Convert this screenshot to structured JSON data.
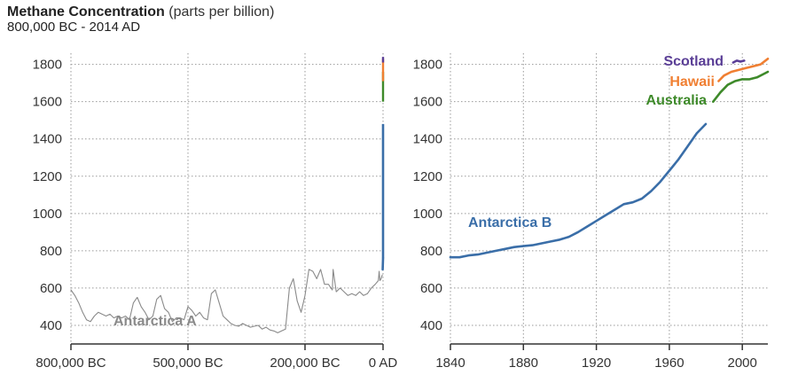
{
  "header": {
    "title": "Methane Concentration",
    "units": "(parts per billion)",
    "subtitle": "800,000 BC - 2014 AD"
  },
  "colors": {
    "antarctica_a": "#8a8a8a",
    "antarctica_b": "#3a6ea8",
    "australia": "#3e8a2a",
    "hawaii": "#f07f32",
    "scotland": "#5a3e96",
    "grid": "#9a9a9a",
    "axis": "#333333"
  },
  "chart_data": [
    {
      "type": "line",
      "title": "",
      "xlabel": "",
      "ylabel": "",
      "xlim": [
        -800000,
        0
      ],
      "ylim": [
        300,
        1860
      ],
      "x_ticks": [
        -800000,
        -500000,
        -200000,
        0
      ],
      "x_tick_labels": [
        "800,000 BC",
        "500,000 BC",
        "200,000 BC",
        "0 AD"
      ],
      "y_ticks": [
        400,
        600,
        800,
        1000,
        1200,
        1400,
        1600,
        1800
      ],
      "y_tick_labels": [
        "400",
        "600",
        "800",
        "1000",
        "1200",
        "1400",
        "1600",
        "1800"
      ],
      "grid": true,
      "legend": "inline labels",
      "series": [
        {
          "name": "Antarctica A",
          "x": [
            -800000,
            -790000,
            -780000,
            -770000,
            -760000,
            -750000,
            -740000,
            -730000,
            -720000,
            -710000,
            -700000,
            -690000,
            -680000,
            -670000,
            -660000,
            -650000,
            -640000,
            -630000,
            -620000,
            -610000,
            -600000,
            -590000,
            -580000,
            -570000,
            -560000,
            -550000,
            -540000,
            -530000,
            -520000,
            -510000,
            -500000,
            -490000,
            -480000,
            -470000,
            -460000,
            -450000,
            -440000,
            -430000,
            -420000,
            -410000,
            -400000,
            -390000,
            -380000,
            -370000,
            -360000,
            -350000,
            -340000,
            -330000,
            -320000,
            -310000,
            -300000,
            -290000,
            -280000,
            -270000,
            -260000,
            -250000,
            -240000,
            -230000,
            -220000,
            -210000,
            -200000,
            -190000,
            -180000,
            -170000,
            -160000,
            -150000,
            -140000,
            -130000,
            -128000,
            -120000,
            -110000,
            -100000,
            -90000,
            -80000,
            -70000,
            -60000,
            -50000,
            -40000,
            -30000,
            -20000,
            -12000,
            -10000,
            -8000,
            -5000,
            -2000
          ],
          "values": [
            590,
            560,
            520,
            470,
            430,
            420,
            450,
            470,
            460,
            450,
            460,
            440,
            450,
            440,
            450,
            430,
            520,
            550,
            500,
            470,
            430,
            450,
            540,
            560,
            490,
            470,
            420,
            440,
            440,
            430,
            500,
            480,
            450,
            470,
            440,
            430,
            570,
            590,
            520,
            450,
            430,
            410,
            400,
            395,
            410,
            400,
            390,
            395,
            400,
            380,
            390,
            375,
            370,
            360,
            370,
            380,
            600,
            650,
            530,
            470,
            560,
            700,
            690,
            650,
            700,
            620,
            620,
            590,
            700,
            580,
            600,
            580,
            560,
            570,
            560,
            580,
            560,
            570,
            600,
            620,
            640,
            690,
            640,
            650,
            670
          ]
        },
        {
          "name": "Antarctica B",
          "x": [
            -1000,
            0
          ],
          "values": [
            700,
            760
          ]
        }
      ]
    },
    {
      "type": "line",
      "title": "",
      "xlabel": "",
      "ylabel": "",
      "xlim": [
        1840,
        2014
      ],
      "ylim": [
        300,
        1860
      ],
      "x_ticks": [
        1840,
        1880,
        1920,
        1960,
        2000
      ],
      "x_tick_labels": [
        "1840",
        "1880",
        "1920",
        "1960",
        "2000"
      ],
      "y_ticks": [
        400,
        600,
        800,
        1000,
        1200,
        1400,
        1600,
        1800
      ],
      "y_tick_labels": [
        "400",
        "600",
        "800",
        "1000",
        "1200",
        "1400",
        "1600",
        "1800"
      ],
      "grid": true,
      "legend": "inline labels",
      "series": [
        {
          "name": "Antarctica B",
          "x": [
            1840,
            1845,
            1850,
            1855,
            1860,
            1865,
            1870,
            1875,
            1880,
            1885,
            1890,
            1895,
            1900,
            1905,
            1910,
            1915,
            1920,
            1925,
            1930,
            1935,
            1940,
            1945,
            1950,
            1955,
            1960,
            1965,
            1970,
            1975,
            1980
          ],
          "values": [
            765,
            765,
            775,
            780,
            790,
            800,
            810,
            820,
            825,
            830,
            840,
            850,
            860,
            875,
            900,
            930,
            960,
            990,
            1020,
            1050,
            1060,
            1080,
            1120,
            1170,
            1230,
            1290,
            1360,
            1430,
            1480
          ]
        },
        {
          "name": "Australia",
          "x": [
            1984,
            1988,
            1992,
            1996,
            2000,
            2004,
            2008,
            2012,
            2014
          ],
          "values": [
            1600,
            1650,
            1690,
            1710,
            1720,
            1720,
            1730,
            1750,
            1760
          ]
        },
        {
          "name": "Hawaii",
          "x": [
            1987,
            1990,
            1994,
            1998,
            2002,
            2006,
            2010,
            2014
          ],
          "values": [
            1710,
            1740,
            1760,
            1770,
            1780,
            1790,
            1800,
            1830
          ]
        },
        {
          "name": "Scotland",
          "x": [
            1995,
            1997,
            1999,
            2001
          ],
          "values": [
            1810,
            1820,
            1815,
            1820
          ]
        }
      ]
    }
  ]
}
